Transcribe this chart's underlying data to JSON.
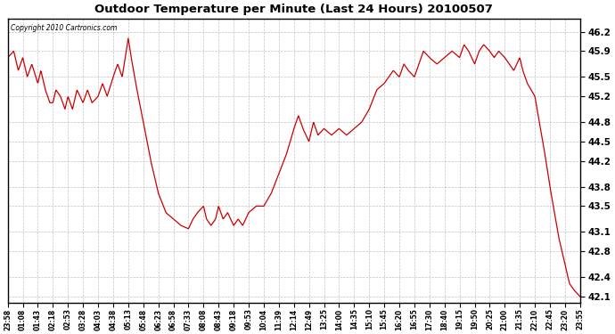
{
  "title": "Outdoor Temperature per Minute (Last 24 Hours) 20100507",
  "copyright": "Copyright 2010 Cartronics.com",
  "line_color": "#cc0000",
  "bg_color": "#ffffff",
  "plot_bg_color": "#ffffff",
  "grid_color": "#bbbbbb",
  "ylim": [
    42.0,
    46.4
  ],
  "yticks": [
    42.1,
    42.4,
    42.8,
    43.1,
    43.5,
    43.8,
    44.2,
    44.5,
    44.8,
    45.2,
    45.5,
    45.9,
    46.2
  ],
  "xtick_labels": [
    "23:58",
    "01:08",
    "01:43",
    "02:18",
    "02:53",
    "03:28",
    "04:03",
    "04:38",
    "05:13",
    "05:48",
    "06:23",
    "06:58",
    "07:33",
    "08:08",
    "08:43",
    "09:18",
    "09:53",
    "10:04",
    "11:39",
    "12:14",
    "12:49",
    "13:25",
    "14:00",
    "14:35",
    "15:10",
    "15:45",
    "16:20",
    "16:55",
    "17:30",
    "18:40",
    "19:15",
    "19:50",
    "20:25",
    "21:00",
    "21:35",
    "22:10",
    "22:45",
    "23:20",
    "23:55"
  ]
}
